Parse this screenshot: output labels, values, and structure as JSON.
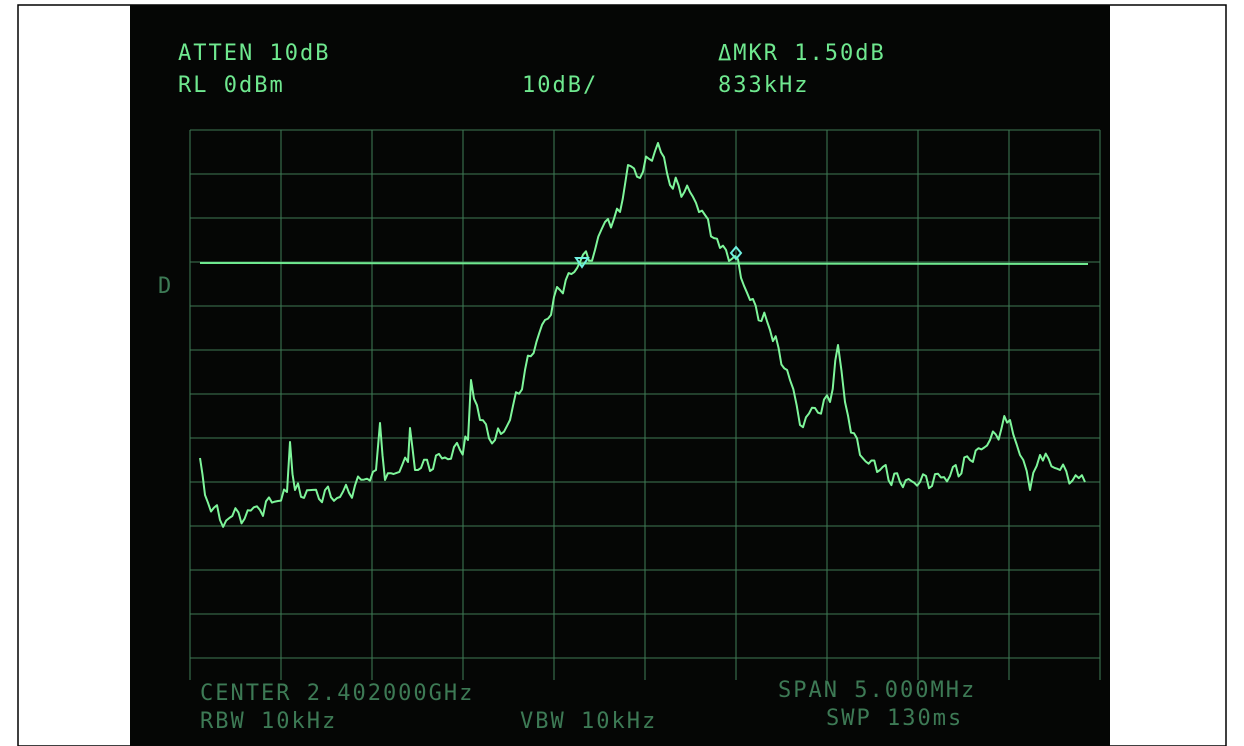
{
  "screen": {
    "top_left": [
      "ATTEN 10dB",
      "RL 0dBm"
    ],
    "scale": "10dB/",
    "marker": [
      "ΔMKR 1.50dB",
      "833kHz"
    ],
    "display_line_label": "D",
    "bottom_left": [
      "CENTER 2.402000GHz",
      "RBW 10kHz"
    ],
    "bottom_middle": "VBW 10kHz",
    "bottom_right": [
      "SPAN 5.000MHz",
      "SWP 130ms"
    ]
  }
}
